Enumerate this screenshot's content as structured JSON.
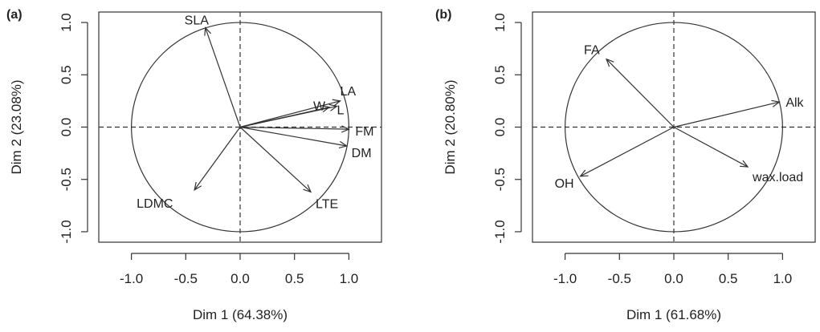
{
  "chart_data": [
    {
      "type": "scatter",
      "panel_label": "(a)",
      "xlabel": "Dim 1 (64.38%)",
      "ylabel": "Dim 2 (23.08%)",
      "xticks": [
        -1.0,
        -0.5,
        0.0,
        0.5,
        1.0
      ],
      "xtick_labels": [
        "-1.0",
        "-0.5",
        "0.0",
        "0.5",
        "1.0"
      ],
      "yticks": [
        -1.0,
        -0.5,
        0.0,
        0.5,
        1.0
      ],
      "ytick_labels": [
        "-1.0",
        "-0.5",
        "0.0",
        "0.5",
        "1.0"
      ],
      "xlim": [
        -1.3,
        1.3
      ],
      "ylim": [
        -1.1,
        1.1
      ],
      "unit_circle": true,
      "reference_lines": [
        0,
        0
      ],
      "vectors": [
        {
          "name": "SLA",
          "x": -0.32,
          "y": 0.95
        },
        {
          "name": "LA",
          "x": 0.92,
          "y": 0.25
        },
        {
          "name": "W",
          "x": 0.82,
          "y": 0.19
        },
        {
          "name": "L",
          "x": 0.89,
          "y": 0.2
        },
        {
          "name": "FM",
          "x": 1.0,
          "y": -0.02
        },
        {
          "name": "DM",
          "x": 0.98,
          "y": -0.18
        },
        {
          "name": "LTE",
          "x": 0.65,
          "y": -0.62
        },
        {
          "name": "LDMC",
          "x": -0.42,
          "y": -0.6
        }
      ]
    },
    {
      "type": "scatter",
      "panel_label": "(b)",
      "xlabel": "Dim 1 (61.68%)",
      "ylabel": "Dim 2 (20.80%)",
      "xticks": [
        -1.0,
        -0.5,
        0.0,
        0.5,
        1.0
      ],
      "xtick_labels": [
        "-1.0",
        "-0.5",
        "0.0",
        "0.5",
        "1.0"
      ],
      "yticks": [
        -1.0,
        -0.5,
        0.0,
        0.5,
        1.0
      ],
      "ytick_labels": [
        "-1.0",
        "-0.5",
        "0.0",
        "0.5",
        "1.0"
      ],
      "xlim": [
        -1.3,
        1.3
      ],
      "ylim": [
        -1.1,
        1.1
      ],
      "unit_circle": true,
      "reference_lines": [
        0,
        0
      ],
      "vectors": [
        {
          "name": "FA",
          "x": -0.62,
          "y": 0.65
        },
        {
          "name": "Alk",
          "x": 0.97,
          "y": 0.24
        },
        {
          "name": "wax.load",
          "x": 0.68,
          "y": -0.38
        },
        {
          "name": "OH",
          "x": -0.86,
          "y": -0.47
        }
      ]
    }
  ]
}
